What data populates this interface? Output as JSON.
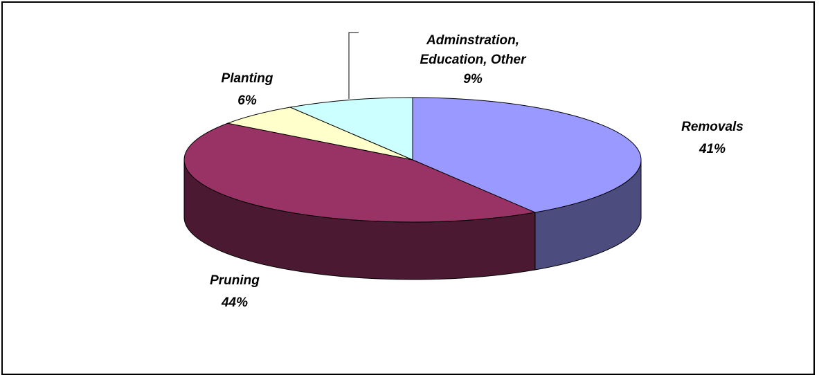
{
  "chart_data": {
    "type": "pie",
    "title": "",
    "style": "3d",
    "slices": [
      {
        "name": "Removals",
        "value": 41,
        "label": "41%",
        "color": "#9999ff",
        "side_color": "#4c4c7f"
      },
      {
        "name": "Pruning",
        "value": 44,
        "label": "44%",
        "color": "#993366",
        "side_color": "#4c1933"
      },
      {
        "name": "Planting",
        "value": 6,
        "label": "6%",
        "color": "#ffffcc",
        "side_color": "#7f7f66"
      },
      {
        "name": "Adminstration, Education, Other",
        "value": 9,
        "label": "9%",
        "color": "#ccffff",
        "side_color": "#667f7f",
        "name_lines": [
          "Adminstration,",
          "Education, Other"
        ]
      }
    ]
  }
}
